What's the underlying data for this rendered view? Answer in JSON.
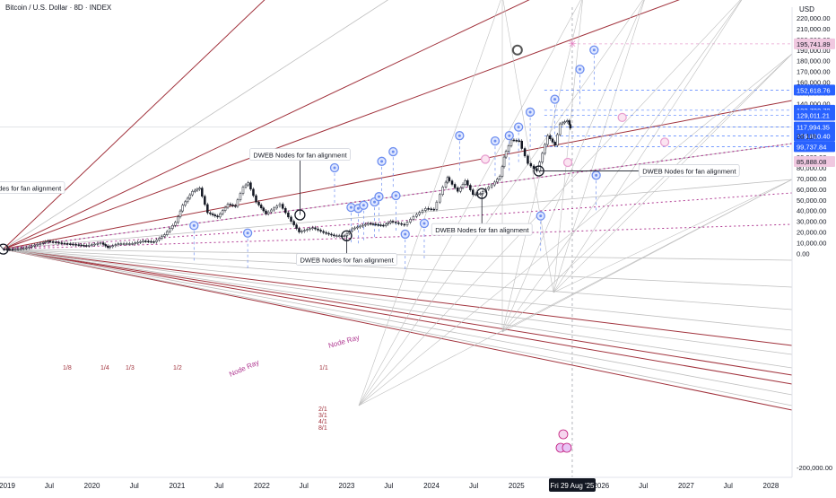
{
  "header": {
    "symbol_title": "Bitcoin / U.S. Dollar · 8D · INDEX",
    "currency": "USD"
  },
  "colors": {
    "red_lines": "#a1323c",
    "gray_lines": "#bfbfbf",
    "node_blue": "#6d8ef0",
    "node_pink": "#e8a0d0",
    "dotted_magenta": "#b03a92",
    "price_blue": "#2962ff",
    "price_pink": "#f0c8e0",
    "price_gray": "#d8dbe3"
  },
  "chart_data": {
    "type": "candlestick",
    "title": "Bitcoin / U.S. Dollar · 8D · INDEX",
    "ylabel": "USD",
    "ylim": [
      -200000,
      225000
    ],
    "xlim": [
      "2018-12-01",
      "2028-04-01"
    ],
    "grid": false,
    "y_ticks": [
      220000,
      210000,
      200000,
      190000,
      180000,
      170000,
      160000,
      150000,
      140000,
      130000,
      120000,
      110000,
      100000,
      90000,
      80000,
      70000,
      60000,
      50000,
      40000,
      30000,
      20000,
      10000,
      0,
      -200000
    ],
    "y_tick_labels": [
      "220,000.00",
      "210,000.00",
      "200,000.00",
      "190,000.00",
      "180,000.00",
      "170,000.00",
      "160,000.00",
      "150,000.00",
      "140,000.00",
      "130,000.00",
      "120,000.00",
      "110,000.00",
      "100,000.00",
      "90,000.00",
      "80,000.00",
      "70,000.00",
      "60,000.00",
      "50,000.00",
      "40,000.00",
      "30,000.00",
      "20,000.00",
      "10,000.00",
      "0.00",
      "-200,000.00"
    ],
    "x_ticks": [
      {
        "date": "2019-01-01",
        "label": "2019"
      },
      {
        "date": "2019-07-01",
        "label": "Jul"
      },
      {
        "date": "2020-01-01",
        "label": "2020"
      },
      {
        "date": "2020-07-01",
        "label": "Jul"
      },
      {
        "date": "2021-01-01",
        "label": "2021"
      },
      {
        "date": "2021-07-01",
        "label": "Jul"
      },
      {
        "date": "2022-01-01",
        "label": "2022"
      },
      {
        "date": "2022-07-01",
        "label": "Jul"
      },
      {
        "date": "2023-01-01",
        "label": "2023"
      },
      {
        "date": "2023-07-01",
        "label": "Jul"
      },
      {
        "date": "2024-01-01",
        "label": "2024"
      },
      {
        "date": "2024-07-01",
        "label": "Jul"
      },
      {
        "date": "2025-01-01",
        "label": "2025"
      },
      {
        "date": "2026-01-01",
        "label": "2026"
      },
      {
        "date": "2026-07-01",
        "label": "Jul"
      },
      {
        "date": "2027-01-01",
        "label": "2027"
      },
      {
        "date": "2027-07-01",
        "label": "Jul"
      },
      {
        "date": "2028-01-01",
        "label": "2028"
      }
    ],
    "crosshair": {
      "date": "2025-08-29",
      "label": "Fri 29 Aug '25",
      "price": 195741.89
    },
    "price_labels": [
      {
        "value": 195741.89,
        "text": "195,741.89",
        "style": "pink"
      },
      {
        "value": 152618.76,
        "text": "152,618.76",
        "style": "blue"
      },
      {
        "value": 133732.72,
        "text": "133,732.72",
        "style": "blue"
      },
      {
        "value": 129011.21,
        "text": "129,011.21",
        "style": "blue"
      },
      {
        "value": 118113.31,
        "text": "118,113.31",
        "style": "gray"
      },
      {
        "value": 117994.35,
        "text": "117,994.35",
        "style": "blue"
      },
      {
        "value": 109810.4,
        "text": "109,810.40",
        "style": "blue"
      },
      {
        "value": 99737.84,
        "text": "99,737.84",
        "style": "blue"
      },
      {
        "value": 85888.08,
        "text": "85,888.08",
        "style": "pink"
      }
    ],
    "countdown": "2d 11h",
    "fan_origin": {
      "date": "2018-12-15",
      "value": 4000
    },
    "fan_labels_upper": [
      "1/8",
      "1/4",
      "1/3",
      "1/2",
      "1/1"
    ],
    "fan_labels_lower": [
      "2/1",
      "3/1",
      "4/1",
      "8/1"
    ],
    "annotations": [
      {
        "text": "DWEB Nodes for fan alignment",
        "date": "2018-12-15",
        "value": 4000,
        "label_date": "2018-05-01",
        "label_value": 61000
      },
      {
        "text": "DWEB Nodes for fan alignment",
        "date": "2022-06-14",
        "value": 36000,
        "label_date": "2022-06-14",
        "label_value": 92000
      },
      {
        "text": "DWEB Nodes for fan alignment",
        "date": "2023-01-01",
        "value": 16500,
        "label_date": "2023-01-01",
        "label_value": -6000
      },
      {
        "text": "DWEB Nodes for fan alignment",
        "date": "2024-08-05",
        "value": 56000,
        "label_date": "2024-08-05",
        "label_value": 22000
      },
      {
        "text": "DWEB Nodes for fan alignment",
        "date": "2025-04-07",
        "value": 77000,
        "label_date": "2026-07-01",
        "label_value": 77000
      }
    ],
    "node_ray_labels": [
      "Node Ray",
      "Node Ray"
    ],
    "series": [
      {
        "type": "candlestick",
        "values": [
          [
            "2018-12-15",
            4000
          ],
          [
            "2019-02-01",
            3600
          ],
          [
            "2019-04-01",
            5200
          ],
          [
            "2019-06-01",
            9500
          ],
          [
            "2019-07-01",
            11500
          ],
          [
            "2019-09-01",
            9500
          ],
          [
            "2019-11-01",
            8200
          ],
          [
            "2019-12-15",
            7200
          ],
          [
            "2020-02-15",
            9800
          ],
          [
            "2020-03-15",
            5500
          ],
          [
            "2020-05-01",
            9000
          ],
          [
            "2020-07-01",
            9200
          ],
          [
            "2020-08-15",
            11600
          ],
          [
            "2020-10-01",
            10800
          ],
          [
            "2020-11-15",
            17500
          ],
          [
            "2021-01-01",
            29000
          ],
          [
            "2021-02-01",
            45000
          ],
          [
            "2021-03-15",
            58000
          ],
          [
            "2021-04-15",
            61000
          ],
          [
            "2021-05-20",
            38000
          ],
          [
            "2021-07-01",
            34000
          ],
          [
            "2021-08-15",
            46000
          ],
          [
            "2021-09-15",
            44000
          ],
          [
            "2021-10-20",
            62000
          ],
          [
            "2021-11-10",
            66000
          ],
          [
            "2021-12-15",
            48000
          ],
          [
            "2022-01-25",
            37000
          ],
          [
            "2022-03-28",
            46000
          ],
          [
            "2022-05-15",
            30000
          ],
          [
            "2022-06-18",
            20000
          ],
          [
            "2022-08-15",
            24000
          ],
          [
            "2022-10-01",
            19500
          ],
          [
            "2022-11-15",
            16500
          ],
          [
            "2022-12-30",
            16500
          ],
          [
            "2023-02-01",
            23000
          ],
          [
            "2023-04-10",
            28000
          ],
          [
            "2023-06-15",
            26000
          ],
          [
            "2023-07-15",
            30000
          ],
          [
            "2023-09-15",
            26500
          ],
          [
            "2023-10-25",
            34500
          ],
          [
            "2023-12-15",
            42000
          ],
          [
            "2024-01-20",
            41000
          ],
          [
            "2024-02-28",
            62000
          ],
          [
            "2024-03-14",
            71000
          ],
          [
            "2024-05-01",
            58000
          ],
          [
            "2024-06-01",
            68000
          ],
          [
            "2024-07-05",
            55000
          ],
          [
            "2024-08-05",
            56000
          ],
          [
            "2024-09-25",
            64000
          ],
          [
            "2024-10-28",
            72000
          ],
          [
            "2024-11-13",
            90000
          ],
          [
            "2024-12-17",
            106000
          ],
          [
            "2025-01-20",
            105000
          ],
          [
            "2025-02-28",
            84000
          ],
          [
            "2025-04-07",
            77000
          ],
          [
            "2025-05-22",
            110000
          ],
          [
            "2025-06-22",
            101000
          ],
          [
            "2025-07-14",
            121000
          ],
          [
            "2025-08-13",
            124000
          ],
          [
            "2025-08-21",
            117000
          ]
        ]
      }
    ],
    "node_circles_blue": [
      [
        "2021-03-15",
        26000
      ],
      [
        "2021-11-01",
        19000
      ],
      [
        "2022-11-10",
        80000
      ],
      [
        "2023-07-20",
        95000
      ],
      [
        "2023-09-10",
        18000
      ],
      [
        "2023-06-01",
        86000
      ],
      [
        "2023-01-20",
        43000
      ],
      [
        "2023-02-20",
        42000
      ],
      [
        "2023-03-15",
        45000
      ],
      [
        "2023-05-01",
        48000
      ],
      [
        "2023-05-20",
        53000
      ],
      [
        "2023-08-01",
        54000
      ],
      [
        "2023-12-01",
        28000
      ],
      [
        "2024-05-01",
        110000
      ],
      [
        "2024-10-01",
        105000
      ],
      [
        "2024-12-01",
        110000
      ],
      [
        "2025-01-10",
        118000
      ],
      [
        "2025-03-01",
        132000
      ],
      [
        "2025-04-15",
        35000
      ],
      [
        "2025-06-15",
        144000
      ],
      [
        "2025-10-01",
        172000
      ],
      [
        "2025-12-01",
        190000
      ],
      [
        "2025-12-10",
        73000
      ]
    ],
    "node_circles_pink": [
      [
        "2024-08-20",
        88000
      ],
      [
        "2025-08-10",
        85000
      ],
      [
        "2026-04-01",
        127000
      ],
      [
        "2026-10-01",
        104000
      ]
    ],
    "node_circle_gray": [
      "2025-01-05",
      190000
    ]
  }
}
